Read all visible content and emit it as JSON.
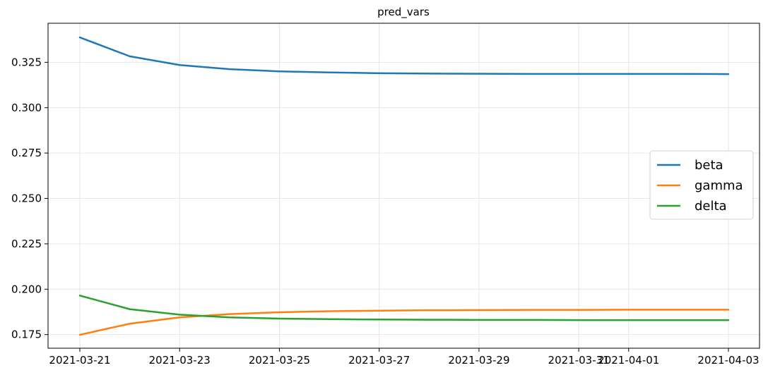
{
  "chart_data": {
    "type": "line",
    "title": "pred_vars",
    "xlabel": "",
    "ylabel": "",
    "x": [
      "2021-03-21",
      "2021-03-22",
      "2021-03-23",
      "2021-03-24",
      "2021-03-25",
      "2021-03-26",
      "2021-03-27",
      "2021-03-28",
      "2021-03-29",
      "2021-03-30",
      "2021-03-31",
      "2021-04-01",
      "2021-04-02",
      "2021-04-03"
    ],
    "x_ticks": [
      "2021-03-21",
      "2021-03-23",
      "2021-03-25",
      "2021-03-27",
      "2021-03-29",
      "2021-03-31",
      "2021-04-01",
      "2021-04-03"
    ],
    "y_ticks": [
      "0.175",
      "0.200",
      "0.225",
      "0.250",
      "0.275",
      "0.300",
      "0.325"
    ],
    "ylim": [
      0.1675,
      0.3465
    ],
    "grid": true,
    "legend_position": "right",
    "series": [
      {
        "name": "beta",
        "color": "#1f77b4",
        "values": [
          0.3387,
          0.3283,
          0.3235,
          0.3212,
          0.32,
          0.3194,
          0.319,
          0.3188,
          0.3187,
          0.3186,
          0.3186,
          0.3186,
          0.3186,
          0.3185
        ]
      },
      {
        "name": "gamma",
        "color": "#ff7f0e",
        "values": [
          0.1749,
          0.181,
          0.1845,
          0.1863,
          0.1873,
          0.1879,
          0.1882,
          0.1884,
          0.1885,
          0.1886,
          0.1886,
          0.1887,
          0.1887,
          0.1887
        ]
      },
      {
        "name": "delta",
        "color": "#2ca02c",
        "values": [
          0.1965,
          0.189,
          0.186,
          0.1845,
          0.1838,
          0.1835,
          0.1833,
          0.1832,
          0.1831,
          0.1831,
          0.183,
          0.183,
          0.183,
          0.183
        ]
      }
    ]
  }
}
